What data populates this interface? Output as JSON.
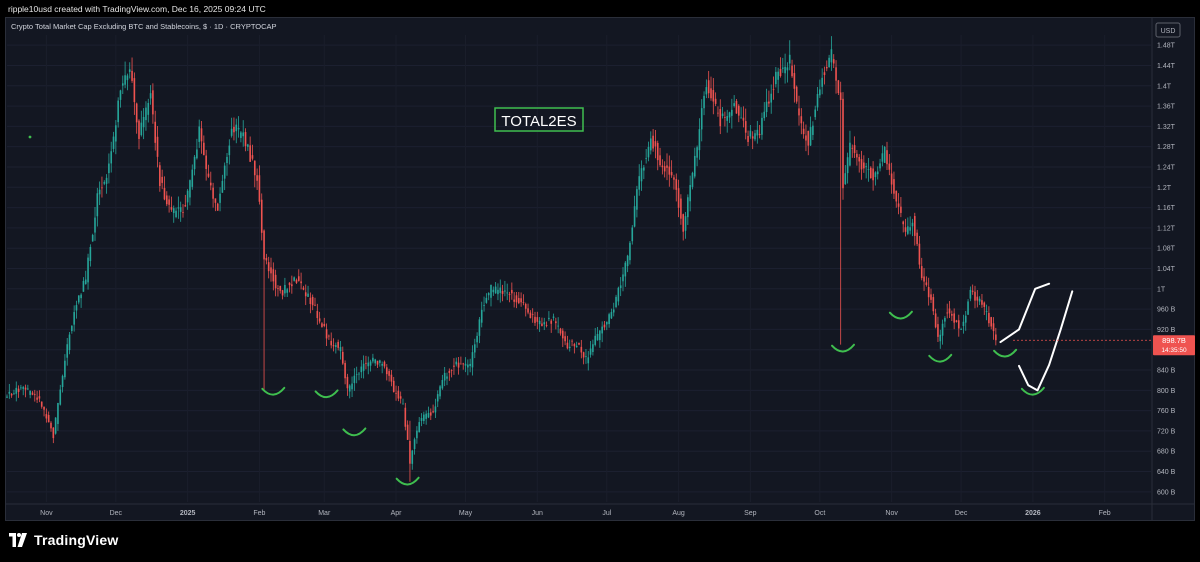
{
  "header": {
    "caption": "ripple10usd created with TradingView.com, Dec 16, 2025 09:24 UTC"
  },
  "footer": {
    "brand": "TradingView"
  },
  "colors": {
    "up": "#26a69a",
    "down": "#ef5350",
    "background": "#131722",
    "annotation": "#3fbf4f"
  },
  "chart_data": {
    "type": "candlestick",
    "title": "Crypto Total Market Cap Excluding BTC and Stablecoins, $ · 1D · CRYPTOCAP",
    "annotation": "TOTAL2ES",
    "currency": "USD",
    "y_unit": "USD",
    "ylim": [
      580000000000,
      1500000000000
    ],
    "y_ticks": [
      "1.48T",
      "1.44T",
      "1.4T",
      "1.36T",
      "1.32T",
      "1.28T",
      "1.24T",
      "1.2T",
      "1.16T",
      "1.12T",
      "1.08T",
      "1.04T",
      "1T",
      "960 B",
      "920 B",
      "880 B",
      "840 B",
      "800 B",
      "760 B",
      "720 B",
      "680 B",
      "640 B",
      "600 B"
    ],
    "x_ticks": [
      "Nov",
      "Dec",
      "2025",
      "Feb",
      "Mar",
      "Apr",
      "May",
      "Jun",
      "Jul",
      "Aug",
      "Sep",
      "Oct",
      "Nov",
      "Dec",
      "2026",
      "Feb"
    ],
    "last_value": "898.7B",
    "countdown": "14:35:50",
    "x_range": [
      "2024-10-15",
      "2026-02-21"
    ],
    "path": [
      [
        "2024-10-15",
        790
      ],
      [
        "2024-10-22",
        805
      ],
      [
        "2024-10-29",
        780
      ],
      [
        "2024-11-04",
        710
      ],
      [
        "2024-11-09",
        860
      ],
      [
        "2024-11-13",
        960
      ],
      [
        "2024-11-18",
        1020
      ],
      [
        "2024-11-23",
        1180
      ],
      [
        "2024-11-28",
        1240
      ],
      [
        "2024-12-03",
        1390
      ],
      [
        "2024-12-07",
        1440
      ],
      [
        "2024-12-11",
        1300
      ],
      [
        "2024-12-16",
        1380
      ],
      [
        "2024-12-20",
        1210
      ],
      [
        "2024-12-25",
        1150
      ],
      [
        "2024-12-31",
        1160
      ],
      [
        "2025-01-06",
        1310
      ],
      [
        "2025-01-10",
        1210
      ],
      [
        "2025-01-14",
        1160
      ],
      [
        "2025-01-20",
        1320
      ],
      [
        "2025-01-25",
        1300
      ],
      [
        "2025-01-31",
        1220
      ],
      [
        "2025-02-03",
        1060
      ],
      [
        "2025-02-10",
        990
      ],
      [
        "2025-02-17",
        1020
      ],
      [
        "2025-02-24",
        970
      ],
      [
        "2025-03-03",
        900
      ],
      [
        "2025-03-08",
        880
      ],
      [
        "2025-03-11",
        800
      ],
      [
        "2025-03-16",
        840
      ],
      [
        "2025-03-22",
        860
      ],
      [
        "2025-03-27",
        850
      ],
      [
        "2025-03-31",
        800
      ],
      [
        "2025-04-04",
        770
      ],
      [
        "2025-04-07",
        660
      ],
      [
        "2025-04-11",
        740
      ],
      [
        "2025-04-17",
        760
      ],
      [
        "2025-04-22",
        830
      ],
      [
        "2025-04-27",
        850
      ],
      [
        "2025-05-03",
        845
      ],
      [
        "2025-05-08",
        960
      ],
      [
        "2025-05-12",
        1000
      ],
      [
        "2025-05-20",
        990
      ],
      [
        "2025-05-27",
        960
      ],
      [
        "2025-06-02",
        930
      ],
      [
        "2025-06-08",
        940
      ],
      [
        "2025-06-13",
        890
      ],
      [
        "2025-06-19",
        890
      ],
      [
        "2025-06-22",
        860
      ],
      [
        "2025-06-26",
        900
      ],
      [
        "2025-07-03",
        950
      ],
      [
        "2025-07-10",
        1060
      ],
      [
        "2025-07-14",
        1200
      ],
      [
        "2025-07-20",
        1300
      ],
      [
        "2025-07-25",
        1240
      ],
      [
        "2025-07-30",
        1220
      ],
      [
        "2025-08-03",
        1120
      ],
      [
        "2025-08-09",
        1280
      ],
      [
        "2025-08-13",
        1410
      ],
      [
        "2025-08-19",
        1330
      ],
      [
        "2025-08-25",
        1360
      ],
      [
        "2025-08-31",
        1300
      ],
      [
        "2025-09-05",
        1310
      ],
      [
        "2025-09-12",
        1420
      ],
      [
        "2025-09-18",
        1450
      ],
      [
        "2025-09-22",
        1330
      ],
      [
        "2025-09-26",
        1290
      ],
      [
        "2025-10-02",
        1420
      ],
      [
        "2025-10-06",
        1460
      ],
      [
        "2025-10-10",
        1370
      ],
      [
        "2025-10-11",
        1200
      ],
      [
        "2025-10-14",
        1280
      ],
      [
        "2025-10-19",
        1240
      ],
      [
        "2025-10-25",
        1220
      ],
      [
        "2025-10-29",
        1270
      ],
      [
        "2025-11-03",
        1170
      ],
      [
        "2025-11-07",
        1110
      ],
      [
        "2025-11-10",
        1140
      ],
      [
        "2025-11-14",
        1020
      ],
      [
        "2025-11-18",
        980
      ],
      [
        "2025-11-21",
        900
      ],
      [
        "2025-11-25",
        960
      ],
      [
        "2025-12-01",
        920
      ],
      [
        "2025-12-05",
        990
      ],
      [
        "2025-12-09",
        980
      ],
      [
        "2025-12-13",
        940
      ],
      [
        "2025-12-16",
        898.7
      ]
    ],
    "wicks": [
      [
        "2025-02-03",
        1060,
        800
      ],
      [
        "2025-10-10",
        1370,
        890
      ],
      [
        "2025-04-07",
        740,
        620
      ]
    ],
    "bottom_markers": [
      [
        "2025-02-07",
        795
      ],
      [
        "2025-03-02",
        790
      ],
      [
        "2025-03-14",
        715
      ],
      [
        "2025-04-06",
        618
      ],
      [
        "2025-10-11",
        880
      ],
      [
        "2025-11-05",
        945
      ],
      [
        "2025-11-22",
        860
      ],
      [
        "2025-12-20",
        870
      ],
      [
        "2026-01-01",
        795
      ]
    ],
    "projection_paths": [
      [
        [
          "2025-12-18",
          895
        ],
        [
          "2025-12-26",
          920
        ],
        [
          "2026-01-02",
          1000
        ],
        [
          "2026-01-08",
          1010
        ]
      ],
      [
        [
          "2025-12-26",
          848
        ],
        [
          "2025-12-30",
          810
        ],
        [
          "2026-01-03",
          800
        ],
        [
          "2026-01-08",
          850
        ],
        [
          "2026-01-13",
          920
        ],
        [
          "2026-01-18",
          995
        ]
      ]
    ]
  }
}
